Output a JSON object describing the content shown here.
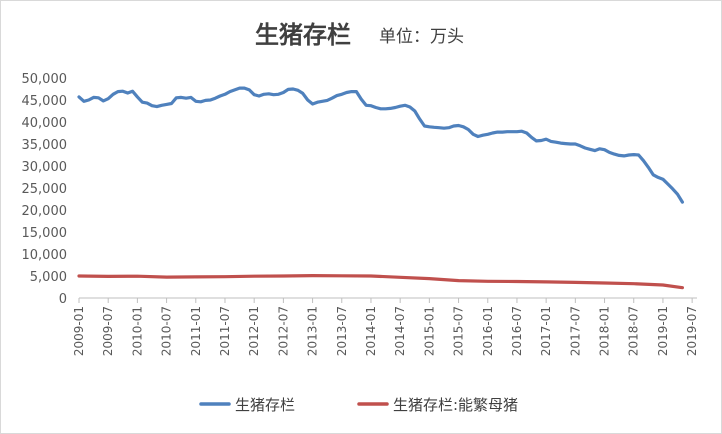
{
  "chart_data": {
    "type": "line",
    "title": "生猪存栏",
    "subtitle": "单位：万头",
    "ylim": [
      0,
      50000
    ],
    "yticks": [
      "0",
      "5,000",
      "10,000",
      "15,000",
      "20,000",
      "25,000",
      "30,000",
      "35,000",
      "40,000",
      "45,000",
      "50,000"
    ],
    "xticks": [
      "2009-01",
      "2009-07",
      "2010-01",
      "2010-07",
      "2011-01",
      "2011-07",
      "2012-01",
      "2012-07",
      "2013-01",
      "2013-07",
      "2014-01",
      "2014-07",
      "2015-01",
      "2015-07",
      "2016-01",
      "2016-07",
      "2017-01",
      "2017-07",
      "2018-01",
      "2018-07",
      "2019-01",
      "2019-07"
    ],
    "legend_position": "bottom",
    "grid": false,
    "series": [
      {
        "name": "生猪存栏",
        "color": "#4f81bd",
        "points": [
          [
            "2009-01",
            45700
          ],
          [
            "2009-02",
            44700
          ],
          [
            "2009-03",
            45000
          ],
          [
            "2009-04",
            45600
          ],
          [
            "2009-05",
            45500
          ],
          [
            "2009-06",
            44800
          ],
          [
            "2009-07",
            45300
          ],
          [
            "2009-08",
            46300
          ],
          [
            "2009-09",
            46900
          ],
          [
            "2009-10",
            47000
          ],
          [
            "2009-11",
            46600
          ],
          [
            "2009-12",
            47000
          ],
          [
            "2010-01",
            45700
          ],
          [
            "2010-02",
            44500
          ],
          [
            "2010-03",
            44300
          ],
          [
            "2010-04",
            43700
          ],
          [
            "2010-05",
            43500
          ],
          [
            "2010-06",
            43800
          ],
          [
            "2010-07",
            44000
          ],
          [
            "2010-08",
            44200
          ],
          [
            "2010-09",
            45500
          ],
          [
            "2010-10",
            45600
          ],
          [
            "2010-11",
            45400
          ],
          [
            "2010-12",
            45600
          ],
          [
            "2011-01",
            44700
          ],
          [
            "2011-02",
            44600
          ],
          [
            "2011-03",
            44900
          ],
          [
            "2011-04",
            45000
          ],
          [
            "2011-05",
            45400
          ],
          [
            "2011-06",
            45900
          ],
          [
            "2011-07",
            46300
          ],
          [
            "2011-08",
            46900
          ],
          [
            "2011-09",
            47300
          ],
          [
            "2011-10",
            47700
          ],
          [
            "2011-11",
            47700
          ],
          [
            "2011-12",
            47300
          ],
          [
            "2012-01",
            46200
          ],
          [
            "2012-02",
            45900
          ],
          [
            "2012-03",
            46300
          ],
          [
            "2012-04",
            46400
          ],
          [
            "2012-05",
            46200
          ],
          [
            "2012-06",
            46300
          ],
          [
            "2012-07",
            46700
          ],
          [
            "2012-08",
            47400
          ],
          [
            "2012-09",
            47500
          ],
          [
            "2012-10",
            47200
          ],
          [
            "2012-11",
            46500
          ],
          [
            "2012-12",
            45000
          ],
          [
            "2013-01",
            44100
          ],
          [
            "2013-02",
            44500
          ],
          [
            "2013-03",
            44700
          ],
          [
            "2013-04",
            44900
          ],
          [
            "2013-05",
            45400
          ],
          [
            "2013-06",
            46000
          ],
          [
            "2013-07",
            46300
          ],
          [
            "2013-08",
            46700
          ],
          [
            "2013-09",
            46900
          ],
          [
            "2013-10",
            46900
          ],
          [
            "2013-11",
            45200
          ],
          [
            "2013-12",
            43800
          ],
          [
            "2014-01",
            43700
          ],
          [
            "2014-02",
            43300
          ],
          [
            "2014-03",
            43000
          ],
          [
            "2014-04",
            43000
          ],
          [
            "2014-05",
            43100
          ],
          [
            "2014-06",
            43300
          ],
          [
            "2014-07",
            43600
          ],
          [
            "2014-08",
            43800
          ],
          [
            "2014-09",
            43400
          ],
          [
            "2014-10",
            42500
          ],
          [
            "2014-11",
            40700
          ],
          [
            "2014-12",
            39100
          ],
          [
            "2015-01",
            38900
          ],
          [
            "2015-02",
            38800
          ],
          [
            "2015-03",
            38700
          ],
          [
            "2015-04",
            38600
          ],
          [
            "2015-05",
            38700
          ],
          [
            "2015-06",
            39100
          ],
          [
            "2015-07",
            39200
          ],
          [
            "2015-08",
            38900
          ],
          [
            "2015-09",
            38300
          ],
          [
            "2015-10",
            37200
          ],
          [
            "2015-11",
            36700
          ],
          [
            "2015-12",
            37000
          ],
          [
            "2016-01",
            37200
          ],
          [
            "2016-02",
            37500
          ],
          [
            "2016-03",
            37700
          ],
          [
            "2016-04",
            37700
          ],
          [
            "2016-05",
            37800
          ],
          [
            "2016-06",
            37800
          ],
          [
            "2016-07",
            37800
          ],
          [
            "2016-08",
            37900
          ],
          [
            "2016-09",
            37500
          ],
          [
            "2016-10",
            36500
          ],
          [
            "2016-11",
            35700
          ],
          [
            "2016-12",
            35800
          ],
          [
            "2017-01",
            36100
          ],
          [
            "2017-02",
            35600
          ],
          [
            "2017-03",
            35400
          ],
          [
            "2017-04",
            35200
          ],
          [
            "2017-05",
            35100
          ],
          [
            "2017-06",
            35000
          ],
          [
            "2017-07",
            35000
          ],
          [
            "2017-08",
            34600
          ],
          [
            "2017-09",
            34100
          ],
          [
            "2017-10",
            33800
          ],
          [
            "2017-11",
            33500
          ],
          [
            "2017-12",
            33900
          ],
          [
            "2018-01",
            33700
          ],
          [
            "2018-02",
            33100
          ],
          [
            "2018-03",
            32700
          ],
          [
            "2018-04",
            32400
          ],
          [
            "2018-05",
            32300
          ],
          [
            "2018-06",
            32500
          ],
          [
            "2018-07",
            32600
          ],
          [
            "2018-08",
            32500
          ],
          [
            "2018-09",
            31200
          ],
          [
            "2018-10",
            29700
          ],
          [
            "2018-11",
            28000
          ],
          [
            "2018-12",
            27400
          ],
          [
            "2019-01",
            27000
          ],
          [
            "2019-02",
            25900
          ],
          [
            "2019-03",
            24800
          ],
          [
            "2019-04",
            23600
          ],
          [
            "2019-05",
            21800
          ]
        ]
      },
      {
        "name": "生猪存栏:能繁母猪",
        "color": "#c0504d",
        "points": [
          [
            "2009-01",
            5000
          ],
          [
            "2009-07",
            4900
          ],
          [
            "2010-01",
            4950
          ],
          [
            "2010-07",
            4750
          ],
          [
            "2011-01",
            4800
          ],
          [
            "2011-07",
            4850
          ],
          [
            "2012-01",
            4950
          ],
          [
            "2012-07",
            5000
          ],
          [
            "2013-01",
            5100
          ],
          [
            "2013-07",
            5050
          ],
          [
            "2014-01",
            5000
          ],
          [
            "2014-07",
            4700
          ],
          [
            "2015-01",
            4400
          ],
          [
            "2015-07",
            3950
          ],
          [
            "2016-01",
            3800
          ],
          [
            "2016-07",
            3750
          ],
          [
            "2017-01",
            3650
          ],
          [
            "2017-07",
            3550
          ],
          [
            "2018-01",
            3400
          ],
          [
            "2018-07",
            3250
          ],
          [
            "2019-01",
            2950
          ],
          [
            "2019-05",
            2350
          ]
        ]
      }
    ]
  }
}
